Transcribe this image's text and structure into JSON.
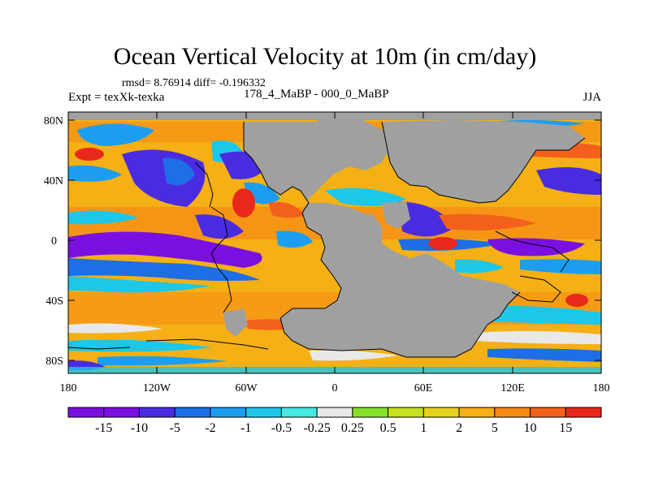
{
  "title": "Ocean Vertical Velocity at 10m (in cm/day)",
  "stats_line": "rmsd= 8.76914 diff= -0.196332",
  "experiment_label": "Expt = texXk-texka",
  "comparison_label": "178_4_MaBP - 000_0_MaBP",
  "season_label": "JJA",
  "lat_ticks": [
    "80N",
    "40N",
    "0",
    "40S",
    "80S"
  ],
  "lon_ticks": [
    "180",
    "120W",
    "60W",
    "0",
    "60E",
    "120E",
    "180"
  ],
  "colorbar": {
    "labels": [
      "-15",
      "-10",
      "-5",
      "-2",
      "-1",
      "-0.5",
      "-0.25",
      "0.25",
      "0.5",
      "1",
      "2",
      "5",
      "10",
      "15"
    ],
    "colors": [
      "#7a10e0",
      "#4a2ce0",
      "#1e6ee6",
      "#1c9ef0",
      "#1ec6e8",
      "#46e8e0",
      "#e8e8e8",
      "#86e028",
      "#c6e21e",
      "#e6d21c",
      "#f4b014",
      "#f68a16",
      "#f2601c",
      "#e8281a"
    ]
  },
  "colors": {
    "land": "#a0a0a0",
    "ocean_default": "#f4b014",
    "coast": "#000000"
  }
}
